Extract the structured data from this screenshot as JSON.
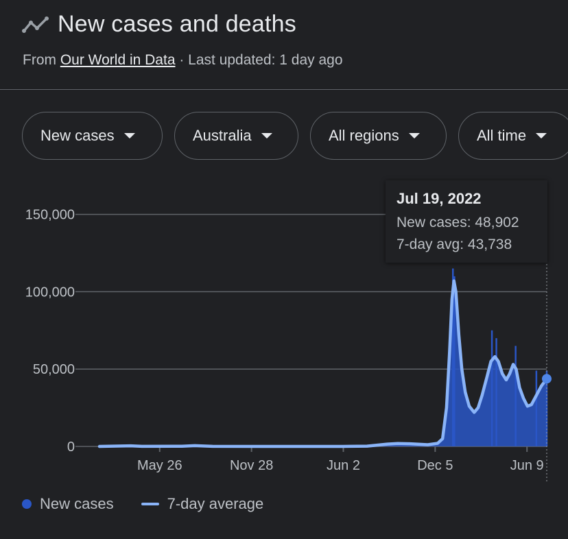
{
  "header": {
    "title": "New cases and deaths",
    "icon": "trending-line-icon",
    "source_prefix": "From ",
    "source_link": "Our World in Data",
    "source_suffix": " · Last updated: 1 day ago"
  },
  "filters": [
    {
      "label": "New cases"
    },
    {
      "label": "Australia"
    },
    {
      "label": "All regions"
    },
    {
      "label": "All time"
    }
  ],
  "tooltip": {
    "date": "Jul 19, 2022",
    "new_cases": "New cases: 48,902",
    "avg": "7-day avg: 43,738"
  },
  "legend": {
    "new_cases": "New cases",
    "avg": "7-day average"
  },
  "colors": {
    "bar": "#2a56c6",
    "avg_line": "#8ab4f8",
    "grid": "#5f6368",
    "text": "#bdc1c6"
  },
  "chart_data": {
    "type": "area",
    "title": "New cases and deaths",
    "ylim": [
      0,
      160000
    ],
    "y_ticks": [
      0,
      50000,
      100000,
      150000
    ],
    "y_tick_labels": [
      "0",
      "50,000",
      "100,000",
      "150,000"
    ],
    "x_ticks": [
      {
        "date": "2020-05-26",
        "label": "May 26"
      },
      {
        "date": "2020-11-28",
        "label": "Nov 28"
      },
      {
        "date": "2021-06-02",
        "label": "Jun 2"
      },
      {
        "date": "2021-12-05",
        "label": "Dec 5"
      },
      {
        "date": "2022-06-09",
        "label": "Jun 9"
      }
    ],
    "xlim": [
      "2020-01-25",
      "2022-07-19"
    ],
    "series": [
      {
        "name": "7-day average",
        "type": "line",
        "points": [
          [
            "2020-01-25",
            0
          ],
          [
            "2020-03-28",
            400
          ],
          [
            "2020-04-20",
            50
          ],
          [
            "2020-07-10",
            100
          ],
          [
            "2020-08-05",
            500
          ],
          [
            "2020-09-10",
            30
          ],
          [
            "2021-06-01",
            20
          ],
          [
            "2021-07-20",
            150
          ],
          [
            "2021-08-30",
            1500
          ],
          [
            "2021-09-20",
            1900
          ],
          [
            "2021-10-15",
            1700
          ],
          [
            "2021-11-20",
            1100
          ],
          [
            "2021-12-10",
            2000
          ],
          [
            "2021-12-20",
            5000
          ],
          [
            "2021-12-28",
            25000
          ],
          [
            "2022-01-03",
            60000
          ],
          [
            "2022-01-08",
            95000
          ],
          [
            "2022-01-12",
            107000
          ],
          [
            "2022-01-16",
            100000
          ],
          [
            "2022-01-22",
            72000
          ],
          [
            "2022-01-28",
            50000
          ],
          [
            "2022-02-04",
            35000
          ],
          [
            "2022-02-12",
            26000
          ],
          [
            "2022-02-22",
            22000
          ],
          [
            "2022-03-02",
            25000
          ],
          [
            "2022-03-10",
            33000
          ],
          [
            "2022-03-20",
            45000
          ],
          [
            "2022-03-28",
            55000
          ],
          [
            "2022-04-05",
            58000
          ],
          [
            "2022-04-12",
            55000
          ],
          [
            "2022-04-20",
            47000
          ],
          [
            "2022-04-28",
            43000
          ],
          [
            "2022-05-05",
            47000
          ],
          [
            "2022-05-12",
            53000
          ],
          [
            "2022-05-18",
            50000
          ],
          [
            "2022-05-25",
            38000
          ],
          [
            "2022-06-02",
            31000
          ],
          [
            "2022-06-10",
            26000
          ],
          [
            "2022-06-18",
            27000
          ],
          [
            "2022-06-28",
            33000
          ],
          [
            "2022-07-08",
            39000
          ],
          [
            "2022-07-19",
            43738
          ]
        ]
      },
      {
        "name": "New cases",
        "type": "bar",
        "peaks": [
          [
            "2022-01-10",
            115000
          ],
          [
            "2022-01-13",
            110000
          ],
          [
            "2022-03-30",
            75000
          ],
          [
            "2022-04-08",
            70000
          ],
          [
            "2022-05-17",
            65000
          ],
          [
            "2022-06-28",
            49000
          ],
          [
            "2022-07-19",
            48902
          ]
        ]
      }
    ]
  }
}
